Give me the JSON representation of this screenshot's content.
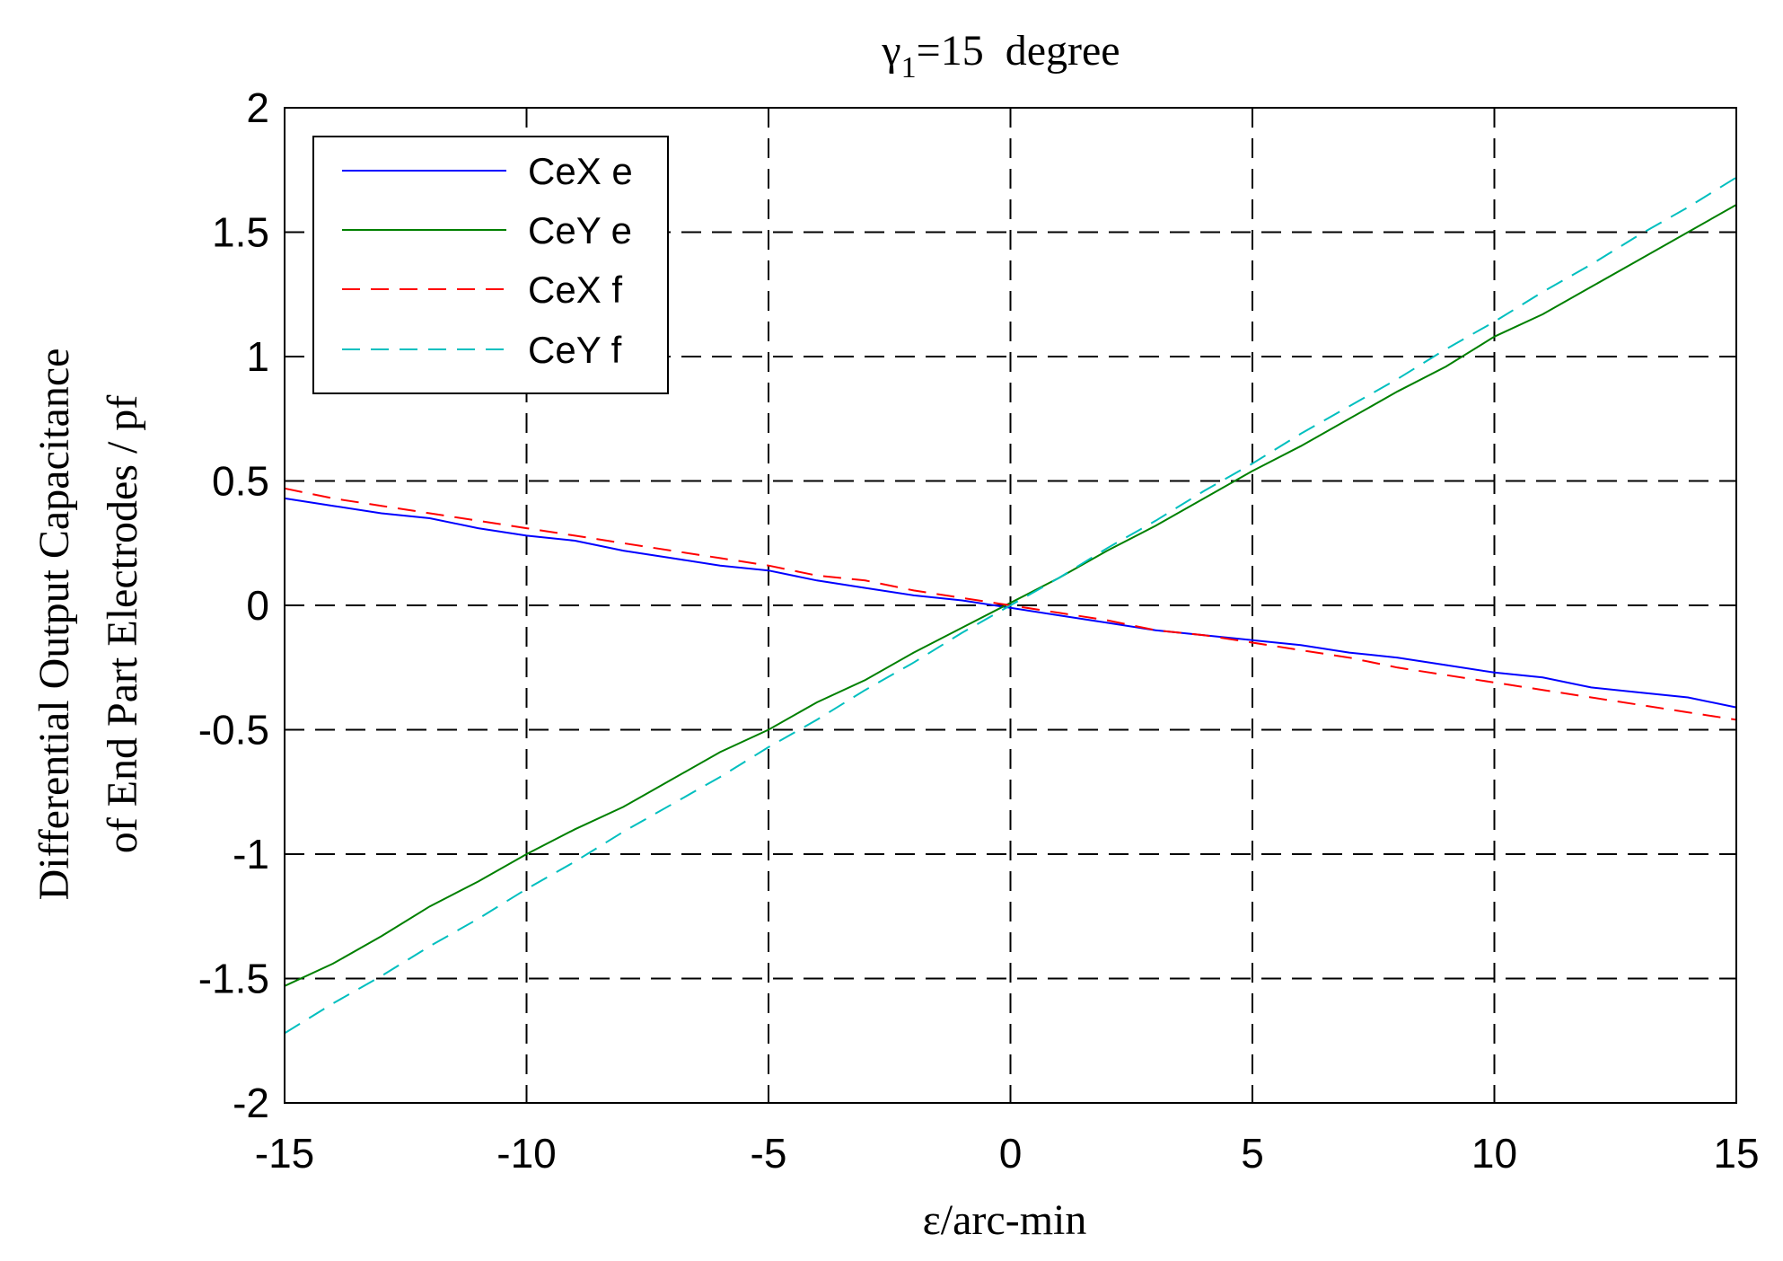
{
  "chart_data": {
    "type": "line",
    "title_symbol": "γ",
    "title_subscript": "1",
    "title_rest": "=15  degree",
    "xlabel": "ε/arc-min",
    "ylabel_line1": "Differential Output Capacitance",
    "ylabel_line2": "of End Part Electrodes / pf",
    "xlim": [
      -15,
      15
    ],
    "ylim": [
      -2,
      2
    ],
    "xticks": [
      "-15",
      "-10",
      "-5",
      "0",
      "5",
      "10",
      "15"
    ],
    "yticks": [
      "2",
      "1.5",
      "1",
      "0.5",
      "0",
      "-0.5",
      "-1",
      "-1.5",
      "-2"
    ],
    "grid": true,
    "legend_position": "top-left",
    "x": [
      -15,
      -14,
      -13,
      -12,
      -11,
      -10,
      -9,
      -8,
      -7,
      -6,
      -5,
      -4,
      -3,
      -2,
      -1,
      0,
      1,
      2,
      3,
      4,
      5,
      6,
      7,
      8,
      9,
      10,
      11,
      12,
      13,
      14,
      15
    ],
    "series": [
      {
        "name": "CeX e",
        "color": "#0000ff",
        "dash": "solid",
        "values": [
          0.43,
          0.4,
          0.37,
          0.35,
          0.31,
          0.28,
          0.26,
          0.22,
          0.19,
          0.16,
          0.14,
          0.1,
          0.07,
          0.04,
          0.02,
          -0.01,
          -0.04,
          -0.07,
          -0.1,
          -0.12,
          -0.14,
          -0.16,
          -0.19,
          -0.21,
          -0.24,
          -0.27,
          -0.29,
          -0.33,
          -0.35,
          -0.37,
          -0.41
        ]
      },
      {
        "name": "CeY e",
        "color": "#008000",
        "dash": "solid",
        "values": [
          -1.53,
          -1.44,
          -1.33,
          -1.21,
          -1.11,
          -1.0,
          -0.9,
          -0.81,
          -0.7,
          -0.59,
          -0.5,
          -0.39,
          -0.3,
          -0.19,
          -0.09,
          0.01,
          0.11,
          0.22,
          0.32,
          0.43,
          0.54,
          0.64,
          0.75,
          0.86,
          0.96,
          1.08,
          1.17,
          1.28,
          1.39,
          1.5,
          1.61
        ]
      },
      {
        "name": "CeX f",
        "color": "#ff0000",
        "dash": "dashed",
        "values": [
          0.47,
          0.43,
          0.4,
          0.37,
          0.34,
          0.31,
          0.28,
          0.25,
          0.22,
          0.19,
          0.16,
          0.12,
          0.1,
          0.06,
          0.03,
          0.0,
          -0.03,
          -0.06,
          -0.1,
          -0.12,
          -0.15,
          -0.18,
          -0.21,
          -0.25,
          -0.28,
          -0.31,
          -0.34,
          -0.37,
          -0.4,
          -0.43,
          -0.46
        ]
      },
      {
        "name": "CeY f",
        "color": "#00bfbf",
        "dash": "dashed",
        "values": [
          -1.72,
          -1.6,
          -1.49,
          -1.37,
          -1.26,
          -1.14,
          -1.03,
          -0.91,
          -0.8,
          -0.69,
          -0.57,
          -0.46,
          -0.34,
          -0.23,
          -0.11,
          0.0,
          0.11,
          0.23,
          0.34,
          0.46,
          0.57,
          0.69,
          0.8,
          0.91,
          1.03,
          1.14,
          1.26,
          1.37,
          1.49,
          1.6,
          1.72
        ]
      }
    ]
  }
}
